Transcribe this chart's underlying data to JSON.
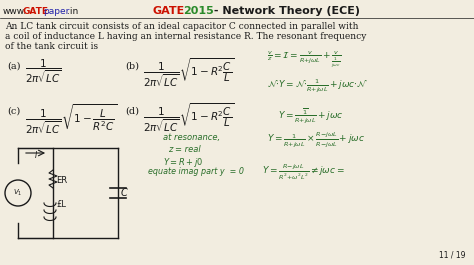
{
  "bg_color": "#f2ede0",
  "watermark_www": "www.",
  "watermark_gate": "GATE",
  "watermark_paper": "paper",
  "watermark_in": ".in",
  "title_gate": "GATE",
  "title_space": "  ",
  "title_year": "2015",
  "title_rest": " - Network Theory (ECE)",
  "page_num": "11 / 19",
  "problem_lines": [
    "An LC tank circuit consists of an ideal capacitor C connected in parallel with",
    "a coil of inductance L having an internal resistance R. The resonant frequency",
    "of the tank circuit is"
  ],
  "color_bg": "#f2ede0",
  "color_black": "#1a1a1a",
  "color_dark": "#222222",
  "color_green": "#2a6e2a",
  "color_red_title": "#cc1100",
  "color_green_year": "#2a8a2a",
  "color_blue_paper": "#2222aa",
  "color_red_gate": "#cc1100"
}
